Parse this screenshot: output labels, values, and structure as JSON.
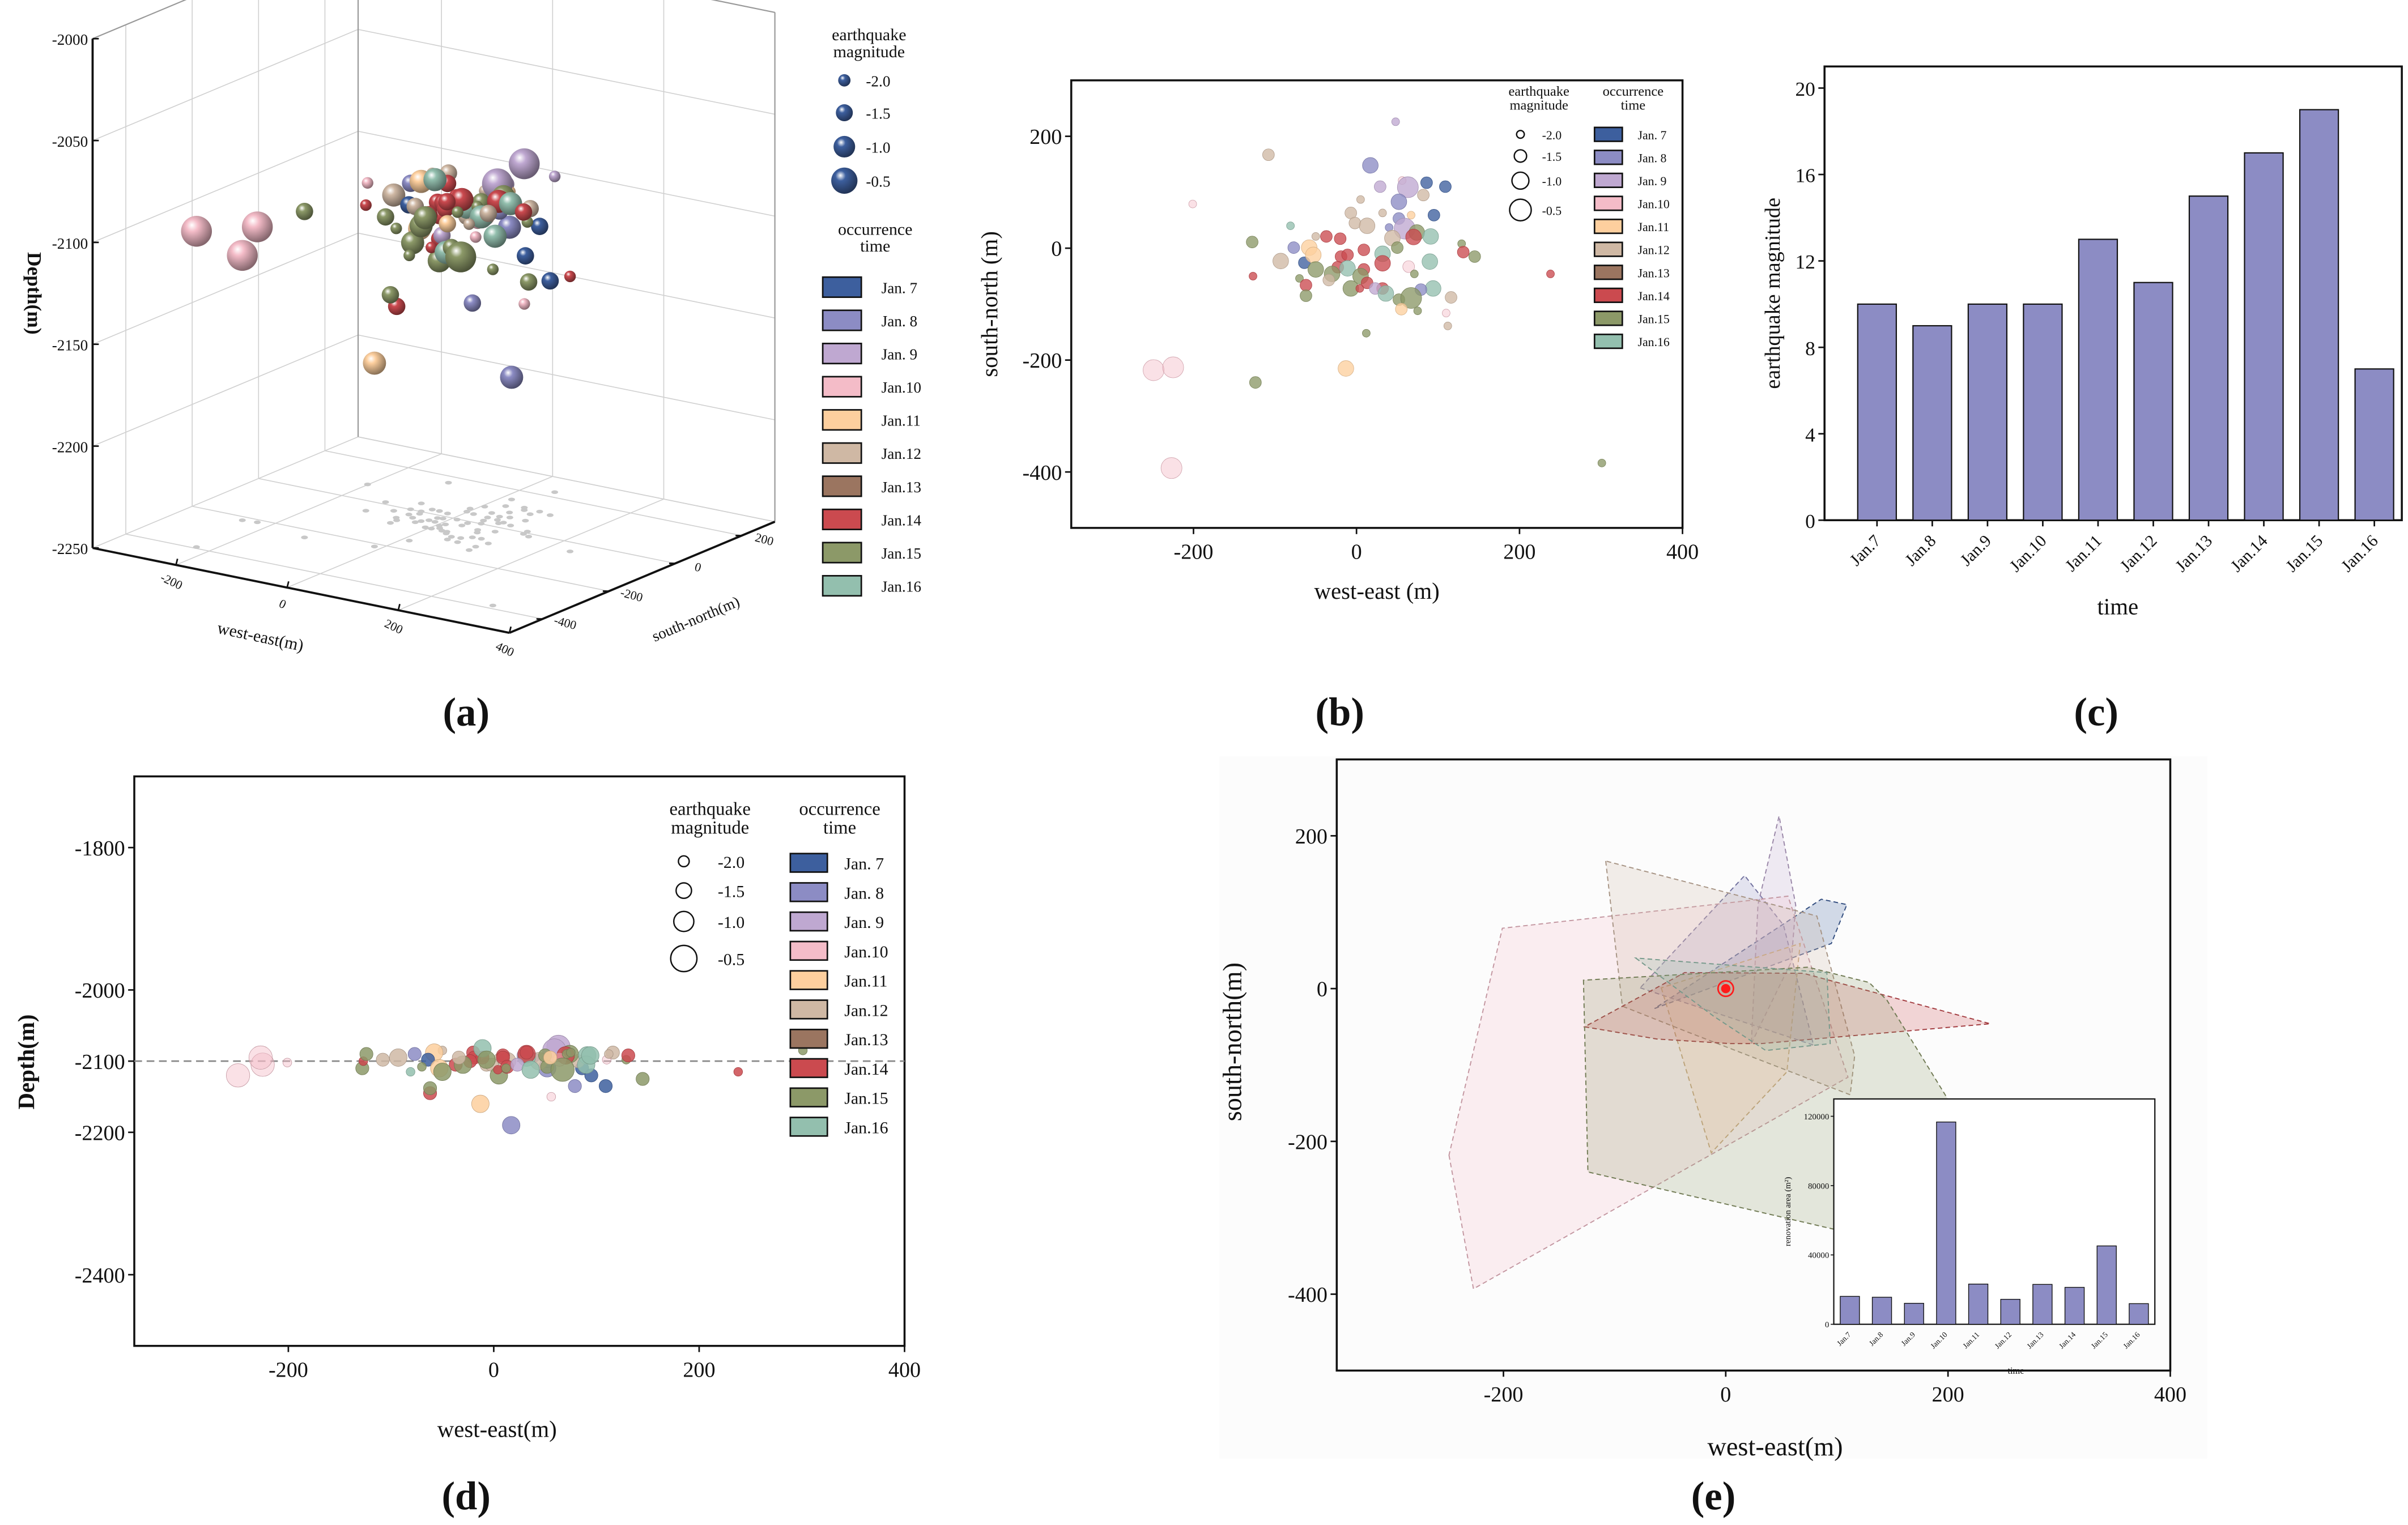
{
  "panel_labels": [
    "(a)",
    "(b)",
    "(c)",
    "(d)",
    "(e)"
  ],
  "legend": {
    "magnitude_title": [
      "earthquake",
      "magnitude"
    ],
    "magnitude_levels": [
      "-2.0",
      "-1.5",
      "-1.0",
      "-0.5"
    ],
    "magnitude_values": [
      -2.0,
      -1.5,
      -1.0,
      -0.5
    ],
    "time_title": [
      "occurrence",
      "time"
    ],
    "dates": [
      "Jan. 7",
      "Jan. 8",
      "Jan. 9",
      "Jan.10",
      "Jan.11",
      "Jan.12",
      "Jan.13",
      "Jan.14",
      "Jan.15",
      "Jan.16"
    ]
  },
  "colors": {
    "days": [
      "#3d5f9e",
      "#8c8cc4",
      "#bfa8d1",
      "#f4bcc8",
      "#fdcf9e",
      "#cfb8a4",
      "#9b7560",
      "#cb4a4f",
      "#8c9968",
      "#93bfae"
    ],
    "bar": "#8c8cc4",
    "marker": "#ff1a1a",
    "floor_dot": "#c8c8c8"
  },
  "chart_data": [
    {
      "id": "a",
      "type": "scatter3d",
      "xlabel": "west-east(m)",
      "ylabel": "south-north(m)",
      "zlabel": "Depth(m)",
      "xlim": [
        -350,
        400
      ],
      "ylim": [
        -500,
        300
      ],
      "zlim": [
        -2250,
        -2000
      ],
      "xticks": [
        -200,
        0,
        200,
        400
      ],
      "yticks": [
        -400,
        -200,
        0,
        200
      ],
      "zticks": [
        -2000,
        -2050,
        -2100,
        -2150,
        -2200,
        -2250
      ],
      "events_columns": [
        "west_east",
        "south_north",
        "depth",
        "day",
        "magnitude"
      ],
      "events": [
        [
          48,
          226,
          -2095,
          9,
          -2.0
        ],
        [
          -108,
          167,
          -2098,
          12,
          -1.5
        ],
        [
          17,
          148,
          -2190,
          8,
          -1.0
        ],
        [
          -201,
          79,
          -2102,
          10,
          -2.0
        ],
        [
          56,
          121,
          -2150,
          10,
          -2.0
        ],
        [
          86,
          117,
          -2110,
          7,
          -1.5
        ],
        [
          109,
          110,
          -2135,
          7,
          -1.5
        ],
        [
          29,
          110,
          -2092,
          9,
          -1.5
        ],
        [
          63,
          109,
          -2080,
          9,
          -0.5
        ],
        [
          5,
          87,
          -2095,
          12,
          -2.0
        ],
        [
          82,
          95,
          -2100,
          12,
          -1.5
        ],
        [
          52,
          83,
          -2110,
          8,
          -1.0
        ],
        [
          -7,
          63,
          -2105,
          12,
          -1.5
        ],
        [
          67,
          59,
          -2090,
          11,
          -2.0
        ],
        [
          95,
          59,
          -2120,
          7,
          -1.5
        ],
        [
          32,
          63,
          -2098,
          12,
          -2.0
        ],
        [
          52,
          53,
          -2100,
          8,
          -1.5
        ],
        [
          -81,
          40,
          -2115,
          16,
          -2.0
        ],
        [
          -2,
          45,
          -2105,
          12,
          -1.5
        ],
        [
          13,
          40,
          -2100,
          12,
          -1.0
        ],
        [
          40,
          37,
          -2095,
          8,
          -2.0
        ],
        [
          59,
          35,
          -2085,
          9,
          -0.5
        ],
        [
          -50,
          21,
          -2085,
          12,
          -2.0
        ],
        [
          -37,
          21,
          -2105,
          14,
          -1.5
        ],
        [
          -20,
          17,
          -2088,
          14,
          -1.5
        ],
        [
          74,
          28,
          -2090,
          15,
          -1.0
        ],
        [
          91,
          21,
          -2092,
          16,
          -1.0
        ],
        [
          70,
          20,
          -2092,
          14,
          -1.0
        ],
        [
          -128,
          11,
          -2110,
          15,
          -1.5
        ],
        [
          -77,
          1,
          -2090,
          8,
          -1.5
        ],
        [
          -58,
          1,
          -2088,
          11,
          -1.0
        ],
        [
          44,
          18,
          -2100,
          12,
          -1.0
        ],
        [
          32,
          -10,
          -2095,
          16,
          -1.0
        ],
        [
          50,
          1,
          -2092,
          15,
          -1.5
        ],
        [
          9,
          -3,
          -2092,
          14,
          -1.5
        ],
        [
          129,
          8,
          -2098,
          15,
          -2.0
        ],
        [
          131,
          -7,
          -2092,
          14,
          -1.5
        ],
        [
          145,
          -15,
          -2125,
          15,
          -1.5
        ],
        [
          -93,
          -23,
          -2095,
          12,
          -1.0
        ],
        [
          -64,
          -26,
          -2098,
          7,
          -1.5
        ],
        [
          -53,
          -12,
          -2110,
          11,
          -1.0
        ],
        [
          -19,
          -15,
          -2095,
          14,
          -1.5
        ],
        [
          -11,
          -12,
          -2095,
          14,
          -1.5
        ],
        [
          32,
          -27,
          -2090,
          14,
          -1.0
        ],
        [
          90,
          -24,
          -2105,
          16,
          -1.0
        ],
        [
          64,
          -33,
          -2098,
          10,
          -1.5
        ],
        [
          -50,
          -38,
          -2115,
          15,
          -1.0
        ],
        [
          -23,
          -34,
          -2100,
          14,
          -1.5
        ],
        [
          -11,
          -36,
          -2082,
          16,
          -1.0
        ],
        [
          -30,
          -46,
          -2105,
          15,
          -1.0
        ],
        [
          9,
          -38,
          -2095,
          14,
          -1.5
        ],
        [
          5,
          -50,
          -2120,
          15,
          -1.0
        ],
        [
          -127,
          -50,
          -2100,
          14,
          -2.0
        ],
        [
          71,
          -46,
          -2090,
          15,
          -2.0
        ],
        [
          -70,
          -54,
          -2108,
          15,
          -2.0
        ],
        [
          -34,
          -57,
          -2095,
          12,
          -1.5
        ],
        [
          -62,
          -66,
          -2145,
          14,
          -1.5
        ],
        [
          13,
          -62,
          -2108,
          14,
          -1.5
        ],
        [
          -7,
          -72,
          -2098,
          15,
          -1.0
        ],
        [
          4,
          -72,
          -2112,
          14,
          -2.0
        ],
        [
          32,
          -72,
          -2088,
          14,
          -1.5
        ],
        [
          23,
          -72,
          -2105,
          9,
          -1.5
        ],
        [
          94,
          -72,
          -2092,
          16,
          -1.0
        ],
        [
          79,
          -74,
          -2135,
          8,
          -1.5
        ],
        [
          36,
          -81,
          -2112,
          16,
          -1.0
        ],
        [
          -62,
          -85,
          -2138,
          15,
          -1.5
        ],
        [
          52,
          -92,
          -2108,
          15,
          -1.5
        ],
        [
          67,
          -89,
          -2112,
          15,
          -0.5
        ],
        [
          116,
          -88,
          -2088,
          12,
          -1.5
        ],
        [
          55,
          -109,
          -2095,
          11,
          -1.5
        ],
        [
          75,
          -112,
          -2088,
          15,
          -2.0
        ],
        [
          110,
          -116,
          -2098,
          10,
          -2.0
        ],
        [
          112,
          -139,
          -2090,
          12,
          -2.0
        ],
        [
          12,
          -152,
          -2110,
          15,
          -2.0
        ],
        [
          -249,
          -218,
          -2120,
          10,
          -0.5
        ],
        [
          -225,
          -213,
          -2105,
          10,
          -0.5
        ],
        [
          -13,
          -215,
          -2160,
          11,
          -1.0
        ],
        [
          -124,
          -240,
          -2090,
          15,
          -1.5
        ],
        [
          -227,
          -393,
          -2095,
          10,
          -0.5
        ],
        [
          301,
          -384,
          -2085,
          15,
          -2.0
        ],
        [
          238,
          -46,
          -2115,
          14,
          -2.0
        ]
      ]
    },
    {
      "id": "b",
      "type": "scatter",
      "xlabel": "west-east (m)",
      "ylabel": "south-north (m)",
      "xlim": [
        -350,
        400
      ],
      "ylim": [
        -500,
        300
      ],
      "xticks": [
        -200,
        0,
        200,
        400
      ],
      "yticks": [
        -400,
        -200,
        0,
        200
      ]
    },
    {
      "id": "c",
      "type": "bar",
      "categories": [
        "Jan.7",
        "Jan.8",
        "Jan.9",
        "Jan.10",
        "Jan.11",
        "Jan.12",
        "Jan.13",
        "Jan.14",
        "Jan.15",
        "Jan.16"
      ],
      "values": [
        10,
        9,
        10,
        10,
        13,
        11,
        15,
        17,
        19,
        7
      ],
      "xlabel": "time",
      "ylabel": "earthquake magnitude",
      "ylim": [
        0,
        21
      ],
      "yticks": [
        0,
        4,
        8,
        12,
        16,
        20
      ]
    },
    {
      "id": "d",
      "type": "scatter",
      "xlabel": "west-east(m)",
      "ylabel": "Depth(m)",
      "xlim": [
        -350,
        400
      ],
      "ylim": [
        -2500,
        -1700
      ],
      "xticks": [
        -200,
        0,
        200,
        400
      ],
      "yticks": [
        -1800,
        -2000,
        -2100,
        -2200,
        -2400
      ],
      "reference_depth": -2100
    },
    {
      "id": "e",
      "type": "area",
      "xlabel": "west-east(m)",
      "ylabel": "south-north(m)",
      "xlim": [
        -350,
        400
      ],
      "ylim": [
        -500,
        300
      ],
      "xticks": [
        -200,
        0,
        200,
        400
      ],
      "yticks": [
        -400,
        -200,
        0,
        200
      ],
      "marker": [
        0,
        0
      ],
      "inset": {
        "type": "bar",
        "categories": [
          "Jan.7",
          "Jan.8",
          "Jan.9",
          "Jan.10",
          "Jan.11",
          "Jan.12",
          "Jan.13",
          "Jan.14",
          "Jan.15",
          "Jan.16"
        ],
        "values": [
          16100,
          15600,
          12100,
          116700,
          23200,
          14400,
          23000,
          21300,
          45200,
          11900
        ],
        "xlabel": "time",
        "ylabel": "renovation area (m²)",
        "ylim": [
          0,
          130000
        ],
        "yticks": [
          0,
          40000,
          80000,
          120000
        ]
      }
    }
  ]
}
